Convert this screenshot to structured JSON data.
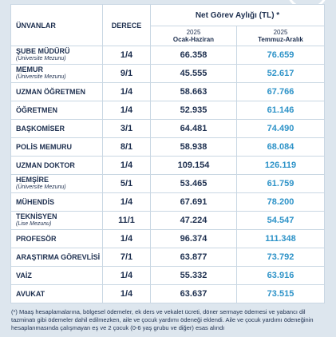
{
  "header": {
    "col_title": "ÜNVANLAR",
    "col_grade": "DERECE",
    "salary_title": "Net Görev Aylığı (TL) *",
    "period1": {
      "year": "2025",
      "label": "Ocak-Haziran"
    },
    "period2": {
      "year": "2025",
      "label": "Temmuz-Aralık"
    }
  },
  "table": {
    "rows": [
      {
        "title": "ŞUBE MÜDÜRÜ",
        "note": "(Üniversite Mezunu)",
        "grade": "1/4",
        "p1": "66.358",
        "p2": "76.659"
      },
      {
        "title": "MEMUR",
        "note": "(Üniversite Mezunu)",
        "grade": "9/1",
        "p1": "45.555",
        "p2": "52.617"
      },
      {
        "title": "UZMAN ÖĞRETMEN",
        "grade": "1/4",
        "p1": "58.663",
        "p2": "67.766"
      },
      {
        "title": "ÖĞRETMEN",
        "grade": "1/4",
        "p1": "52.935",
        "p2": "61.146"
      },
      {
        "title": "BAŞKOMİSER",
        "grade": "3/1",
        "p1": "64.481",
        "p2": "74.490"
      },
      {
        "title": "POLİS MEMURU",
        "grade": "8/1",
        "p1": "58.938",
        "p2": "68.084"
      },
      {
        "title": "UZMAN DOKTOR",
        "grade": "1/4",
        "p1": "109.154",
        "p2": "126.119"
      },
      {
        "title": "HEMŞİRE",
        "note": "(Üniversite Mezunu)",
        "grade": "5/1",
        "p1": "53.465",
        "p2": "61.759"
      },
      {
        "title": "MÜHENDİS",
        "grade": "1/4",
        "p1": "67.691",
        "p2": "78.200"
      },
      {
        "title": "TEKNİSYEN",
        "note": "(Lise Mezunu)",
        "grade": "11/1",
        "p1": "47.224",
        "p2": "54.547"
      },
      {
        "title": "PROFESÖR",
        "grade": "1/4",
        "p1": "96.374",
        "p2": "111.348"
      },
      {
        "title": "ARAŞTIRMA GÖREVLİSİ",
        "grade": "7/1",
        "p1": "63.877",
        "p2": "73.792"
      },
      {
        "title": "VAİZ",
        "grade": "1/4",
        "p1": "55.332",
        "p2": "63.916"
      },
      {
        "title": "AVUKAT",
        "grade": "1/4",
        "p1": "63.637",
        "p2": "73.515"
      }
    ]
  },
  "footnote": "(*) Maaş hesaplamalarına, bölgesel ödemeler, ek ders ve vekalet ücreti, döner sermaye ödemesi ve yabancı dil tazminatı gibi ödemeler dahil edilmezken, aile ve çocuk yardımı ödeneği eklendi. Aile ve çocuk yardımı ödeneğinin hesaplanmasında çalışmayan eş ve 2 çocuk (0-6 yaş grubu ve diğer) esas alındı"
}
